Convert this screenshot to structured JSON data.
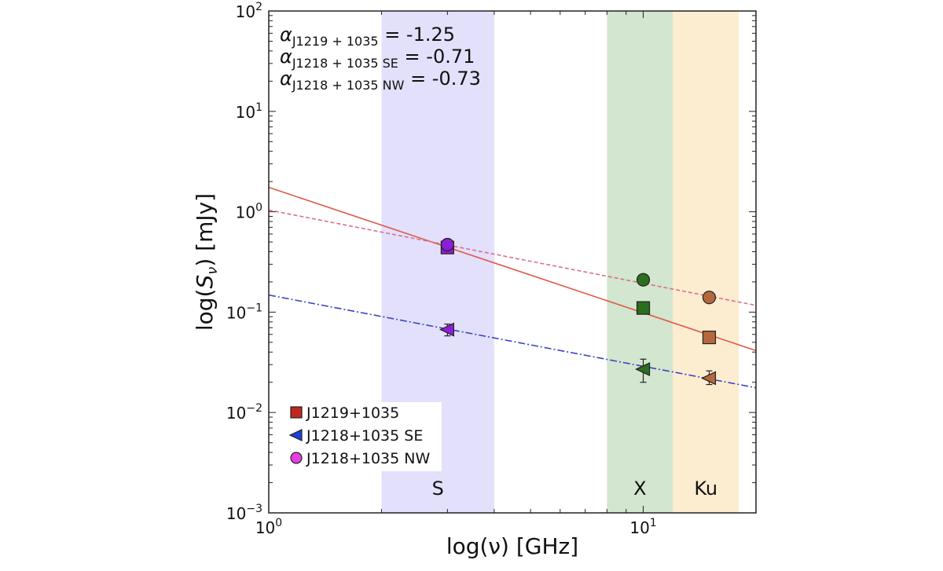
{
  "chart_data": {
    "type": "scatter",
    "xlabel": "log(ν) [GHz]",
    "ylabel": "log(S_ν) [mJy]",
    "xscale": "log",
    "yscale": "log",
    "xlim": [
      1,
      20
    ],
    "ylim": [
      0.001,
      100
    ],
    "xticks": [
      {
        "v": 1,
        "base": "10",
        "exp": "0"
      },
      {
        "v": 10,
        "base": "10",
        "exp": "1"
      }
    ],
    "yticks": [
      {
        "v": 100,
        "base": "10",
        "exp": "2"
      },
      {
        "v": 10,
        "base": "10",
        "exp": "1"
      },
      {
        "v": 1,
        "base": "10",
        "exp": "0"
      },
      {
        "v": 0.1,
        "base": "10",
        "exp": "−1"
      },
      {
        "v": 0.01,
        "base": "10",
        "exp": "−2"
      },
      {
        "v": 0.001,
        "base": "10",
        "exp": "−3"
      }
    ],
    "grid": false,
    "bands": [
      {
        "label": "S",
        "range": [
          2,
          4
        ],
        "color": "#e3e0fb"
      },
      {
        "label": "X",
        "range": [
          8,
          12
        ],
        "color": "#d3e6cf"
      },
      {
        "label": "Ku",
        "range": [
          12,
          18
        ],
        "color": "#fcecd0"
      }
    ],
    "annotations": [
      {
        "symbol": "α",
        "sub": "J1219 + 1035",
        "text": " = -1.25"
      },
      {
        "symbol": "α",
        "sub": "J1218 + 1035 SE",
        "text": " = -0.71"
      },
      {
        "symbol": "α",
        "sub": "J1218 + 1035 NW",
        "text": " = -0.73"
      }
    ],
    "band_point_colors": {
      "S": "#8b1fd6",
      "X": "#2a6e1e",
      "Ku": "#b5683d"
    },
    "series": [
      {
        "name": "J1219+1035",
        "marker": "square",
        "legend_color": "#c0281e",
        "fit": {
          "amp": 1.75,
          "index": -1.25,
          "color": "#e0584a",
          "style": "solid"
        },
        "points": [
          {
            "x": 3,
            "y": 0.44,
            "band": "S"
          },
          {
            "x": 10,
            "y": 0.11,
            "band": "X"
          },
          {
            "x": 15,
            "y": 0.056,
            "band": "Ku"
          }
        ]
      },
      {
        "name": "J1218+1035 SE",
        "marker": "triangle-left",
        "legend_color": "#1f3fe0",
        "fit": {
          "amp": 0.148,
          "index": -0.71,
          "color": "#3a45c0",
          "style": "dashdot"
        },
        "points": [
          {
            "x": 3,
            "y": 0.067,
            "yerr": [
              0.058,
              0.076
            ],
            "band": "S"
          },
          {
            "x": 10,
            "y": 0.027,
            "yerr": [
              0.02,
              0.034
            ],
            "band": "X"
          },
          {
            "x": 15,
            "y": 0.022,
            "yerr": [
              0.019,
              0.026
            ],
            "band": "Ku"
          }
        ]
      },
      {
        "name": "J1218+1035 NW",
        "marker": "circle",
        "legend_color": "#e43ee0",
        "fit": {
          "amp": 1.04,
          "index": -0.73,
          "color": "#d8708f",
          "style": "dashed"
        },
        "points": [
          {
            "x": 3,
            "y": 0.47,
            "band": "S"
          },
          {
            "x": 10,
            "y": 0.21,
            "band": "X"
          },
          {
            "x": 15,
            "y": 0.14,
            "band": "Ku"
          }
        ]
      }
    ],
    "legend_placement": "lower-left"
  }
}
